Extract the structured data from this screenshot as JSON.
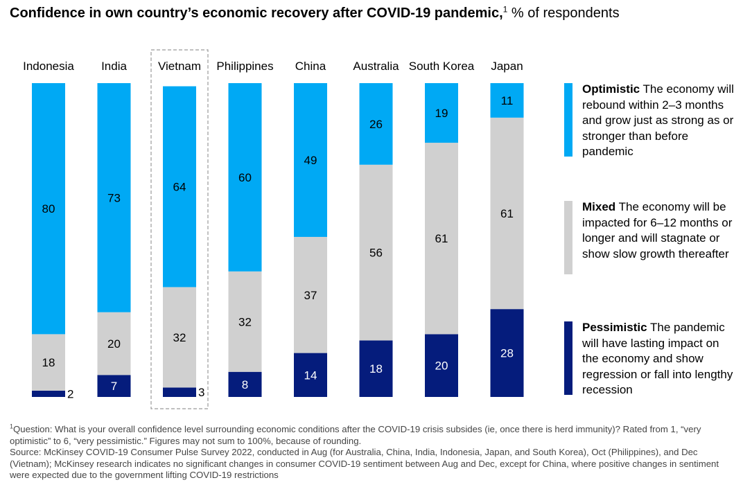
{
  "title": {
    "bold": "Confidence in own country’s economic recovery after COVID-19 pandemic,",
    "sup": "1",
    "rest": " % of respondents"
  },
  "colors": {
    "optimistic": "#00a9f4",
    "mixed": "#d0d0d0",
    "pessimistic": "#051c7c",
    "highlight_border": "#999999"
  },
  "chart_data": {
    "type": "bar",
    "stacked": true,
    "orientation": "vertical",
    "unit": "% of respondents",
    "categories": [
      "Indonesia",
      "India",
      "Vietnam",
      "Philippines",
      "China",
      "Australia",
      "South Korea",
      "Japan"
    ],
    "highlighted_category": "Vietnam",
    "series": [
      {
        "name": "Pessimistic",
        "values": [
          2,
          7,
          3,
          8,
          14,
          18,
          20,
          28
        ]
      },
      {
        "name": "Mixed",
        "values": [
          18,
          20,
          32,
          32,
          37,
          56,
          61,
          61
        ]
      },
      {
        "name": "Optimistic",
        "values": [
          80,
          73,
          64,
          60,
          49,
          26,
          19,
          11
        ]
      }
    ],
    "ylim": [
      0,
      100
    ],
    "grid": false,
    "legend_placement": "right"
  },
  "legend": [
    {
      "key": "optimistic",
      "label": "Optimistic",
      "text": " The economy will rebound within 2–3 months and grow just as strong as or stronger than before pandemic"
    },
    {
      "key": "mixed",
      "label": "Mixed",
      "text": " The economy will be impacted for 6–12 months or longer and will stagnate or show slow growth thereafter"
    },
    {
      "key": "pessimistic",
      "label": "Pessimistic",
      "text": " The pandemic will have lasting impact on the economy and show regression or fall into lengthy recession"
    }
  ],
  "footnotes": {
    "note_marker": "1",
    "note_text": "Question: What is your overall confidence level surrounding economic conditions after the COVID-19 crisis subsides (ie, once there is herd immunity)? Rated from 1, “very optimistic” to 6, “very pessimistic.” Figures may not sum to 100%, because of rounding.",
    "source": "Source: McKinsey COVID-19 Consumer Pulse Survey 2022, conducted in Aug (for Australia, China, India, Indonesia, Japan, and South Korea), Oct (Philippines), and Dec (Vietnam); McKinsey research indicates no significant changes in consumer COVID-19 sentiment between Aug and Dec, except for China, where positive changes in sentiment were expected due to the government lifting COVID-19 restrictions"
  }
}
